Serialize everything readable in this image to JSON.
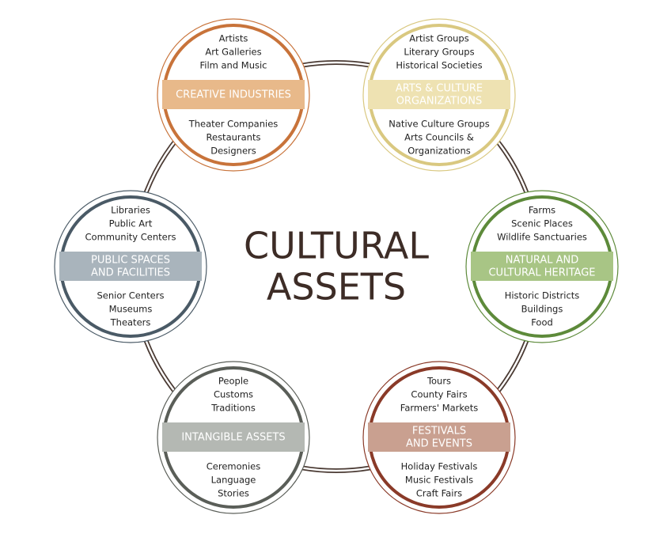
{
  "title": [
    "CULTURAL",
    "ASSETS"
  ],
  "nodes": [
    {
      "label": [
        "CREATIVE INDUSTRIES"
      ],
      "top": [
        "Artists",
        "Art Galleries",
        "Film and Music"
      ],
      "bottom": [
        "Theater Companies",
        "Restaurants",
        "Designers"
      ],
      "color": "#c8733a",
      "band": "#e8b98a"
    },
    {
      "label": [
        "ARTS & CULTURE",
        "ORGANIZATIONS"
      ],
      "top": [
        "Artist Groups",
        "Literary Groups",
        "Historical Societies"
      ],
      "bottom": [
        "Native Culture Groups",
        "Arts Councils &",
        "Organizations"
      ],
      "color": "#d9c880",
      "band": "#eee2b2"
    },
    {
      "label": [
        "PUBLIC SPACES",
        "AND FACILITIES"
      ],
      "top": [
        "Libraries",
        "Public Art",
        "Community Centers"
      ],
      "bottom": [
        "Senior Centers",
        "Museums",
        "Theaters"
      ],
      "color": "#4a5a66",
      "band": "#a9b4bc"
    },
    {
      "label": [
        "NATURAL AND",
        "CULTURAL HERITAGE"
      ],
      "top": [
        "Farms",
        "Scenic Places",
        "Wildlife Sanctuaries"
      ],
      "bottom": [
        "Historic Districts",
        "Buildings",
        "Food"
      ],
      "color": "#5d8a3a",
      "band": "#a8c585"
    },
    {
      "label": [
        "INTANGIBLE ASSETS"
      ],
      "top": [
        "People",
        "Customs",
        "Traditions"
      ],
      "bottom": [
        "Ceremonies",
        "Language",
        "Stories"
      ],
      "color": "#5a5e58",
      "band": "#b4b8b3"
    },
    {
      "label": [
        "FESTIVALS",
        "AND EVENTS"
      ],
      "top": [
        "Tours",
        "County Fairs",
        "Farmers' Markets"
      ],
      "bottom": [
        "Holiday Festivals",
        "Music Festivals",
        "Craft Fairs"
      ],
      "color": "#8a3a28",
      "band": "#c9a090"
    }
  ]
}
